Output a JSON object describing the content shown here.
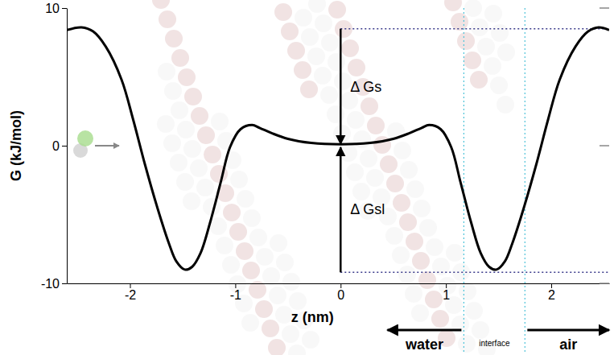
{
  "chart_data": {
    "type": "line",
    "x_label": "z (nm)",
    "y_label": "G (kJ/mol)",
    "xlim": [
      -2.6,
      2.55
    ],
    "ylim": [
      -10,
      10
    ],
    "xticks": [
      -2,
      -1,
      0,
      1,
      2
    ],
    "yticks": [
      -10,
      0,
      10
    ],
    "grid": false,
    "color": "#000000",
    "x": [
      -2.6,
      -2.46,
      -2.35,
      -2.23,
      -2.08,
      -1.97,
      -1.86,
      -1.74,
      -1.63,
      -1.56,
      -1.48,
      -1.41,
      -1.33,
      -1.24,
      -1.14,
      -1.05,
      -0.95,
      -0.84,
      -0.77,
      -0.65,
      -0.5,
      -0.28,
      0,
      0.28,
      0.5,
      0.65,
      0.77,
      0.84,
      0.95,
      1.05,
      1.14,
      1.24,
      1.33,
      1.41,
      1.48,
      1.56,
      1.63,
      1.74,
      1.86,
      1.97,
      2.08,
      2.23,
      2.35,
      2.45,
      2.55
    ],
    "values": [
      8.4,
      8.6,
      8.3,
      7.2,
      4.8,
      1.9,
      -1.3,
      -4.5,
      -7.1,
      -8.4,
      -9.0,
      -8.8,
      -7.8,
      -5.6,
      -2.7,
      -0.1,
      1.2,
      1.5,
      1.3,
      0.9,
      0.5,
      0.2,
      0.1,
      0.2,
      0.5,
      0.9,
      1.3,
      1.5,
      1.2,
      -0.1,
      -2.7,
      -5.6,
      -7.8,
      -8.8,
      -9.0,
      -8.4,
      -7.1,
      -4.5,
      -1.3,
      1.9,
      4.8,
      7.2,
      8.3,
      8.6,
      8.4
    ],
    "annotations": [
      {
        "text": "Δ Gs",
        "x": 0,
        "from": 8.5,
        "to": 0
      },
      {
        "text": "Δ Gsl",
        "x": 0,
        "from": -9.2,
        "to": 0
      }
    ],
    "regions": [
      {
        "text": "water"
      },
      {
        "text": "interface",
        "xlim": [
          1.17,
          1.75
        ]
      },
      {
        "text": "air"
      }
    ]
  }
}
